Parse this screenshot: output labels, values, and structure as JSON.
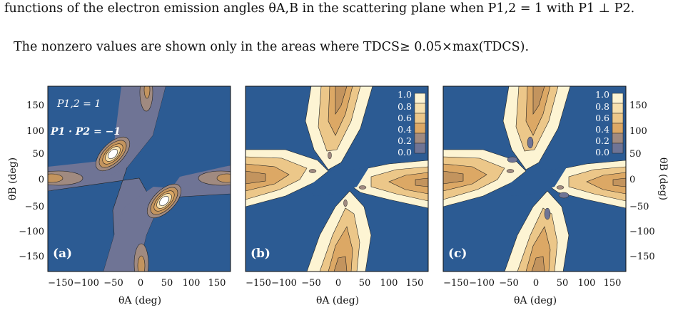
{
  "text": {
    "line1": "functions of the electron emission angles θA,B in the scattering plane when P1,2 = 1 with P1 ⊥ P2.",
    "line2": "The nonzero values are shown only in the areas where TDCS≥ 0.05×max(TDCS)."
  },
  "figure": {
    "panels": [
      {
        "label": "(a)",
        "inset_line1": "P1,2 = 1",
        "inset_line2": "P1 · P2 = −1"
      },
      {
        "label": "(b)"
      },
      {
        "label": "(c)"
      }
    ],
    "xlabel": "θA (deg)",
    "ylabel_left": "θB (deg)",
    "ylabel_right": "θB (deg)",
    "xticks": [
      "−150",
      "−100",
      "−50",
      "0",
      "50",
      "100",
      "150"
    ],
    "yticks": [
      "150",
      "100",
      "50",
      "0",
      "−50",
      "−100",
      "−150"
    ],
    "colorbar_ticks": [
      "1.0",
      "0.8",
      "0.6",
      "0.4",
      "0.2",
      "0.0"
    ]
  },
  "colors": {
    "background": "#2c5b93",
    "floor": "#6f7495",
    "level_1": "#a08a80",
    "level_2": "#c3945e",
    "level_3": "#dca865",
    "level_4": "#ecc789",
    "level_5": "#f6e0ae",
    "level_6": "#fdf4d3"
  }
}
